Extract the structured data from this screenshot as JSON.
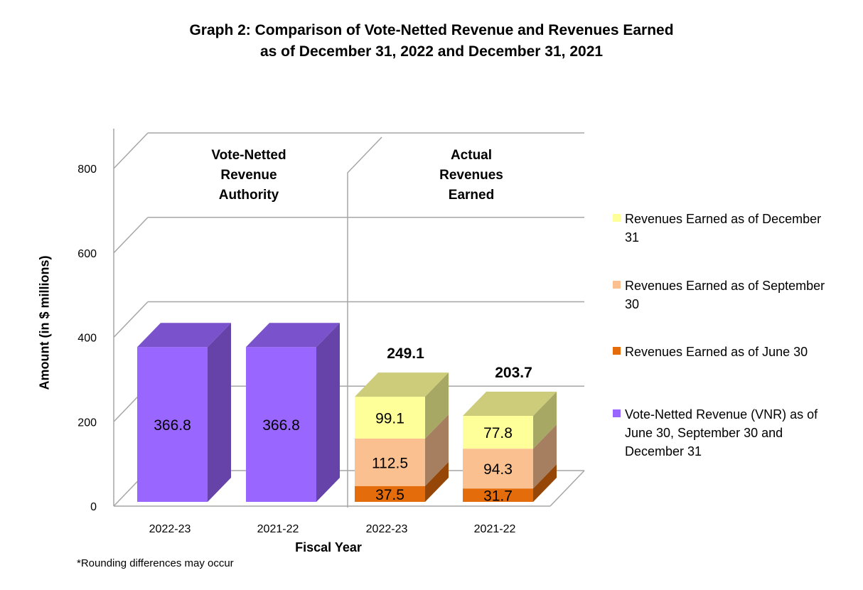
{
  "chart_data": {
    "type": "bar",
    "title": "Graph 2: Comparison of Vote-Netted Revenue and Revenues Earned",
    "subtitle": "as of December 31, 2022 and December 31, 2021",
    "xlabel": "Fiscal Year",
    "ylabel": "Amount (in $ millions)",
    "ylim": [
      0,
      800
    ],
    "yticks": [
      "0",
      "200",
      "400",
      "600",
      "800"
    ],
    "groups": [
      {
        "label": "Vote-Netted\nRevenue\nAuthority",
        "categories": [
          "2022-23",
          "2021-22"
        ]
      },
      {
        "label": "Actual\nRevenues\nEarned",
        "categories": [
          "2022-23",
          "2021-22"
        ]
      }
    ],
    "series": [
      {
        "name": "Vote-Netted Revenue (VNR) as of June 30, September 30 and December 31",
        "color": "#9966ff",
        "values": [
          366.8,
          366.8,
          null,
          null
        ],
        "labels": [
          "366.8",
          "366.8",
          "",
          ""
        ]
      },
      {
        "name": "Revenues Earned as of June 30",
        "color": "#e46c0a",
        "values": [
          null,
          null,
          37.5,
          31.7
        ],
        "labels": [
          "",
          "",
          "37.5",
          "31.7"
        ]
      },
      {
        "name": "Revenues Earned as of September 30",
        "color": "#fac090",
        "values": [
          null,
          null,
          112.5,
          94.3
        ],
        "labels": [
          "",
          "",
          "112.5",
          "94.3"
        ]
      },
      {
        "name": "Revenues Earned as of December 31",
        "color": "#ffff99",
        "values": [
          null,
          null,
          99.1,
          77.8
        ],
        "labels": [
          "",
          "",
          "99.1",
          "77.8"
        ]
      }
    ],
    "totals": [
      null,
      null,
      "249.1",
      "203.7"
    ],
    "legend_position": "right",
    "grid": true
  },
  "legend": [
    {
      "text": "Revenues Earned as of December 31",
      "color": "#ffff99"
    },
    {
      "text": "Revenues Earned as of September 30",
      "color": "#fac090"
    },
    {
      "text": "Revenues Earned as of June 30",
      "color": "#e46c0a"
    },
    {
      "text": "Vote-Netted Revenue (VNR) as of June 30, September 30 and December 31",
      "color": "#9966ff"
    }
  ],
  "note": "*Rounding differences may occur"
}
